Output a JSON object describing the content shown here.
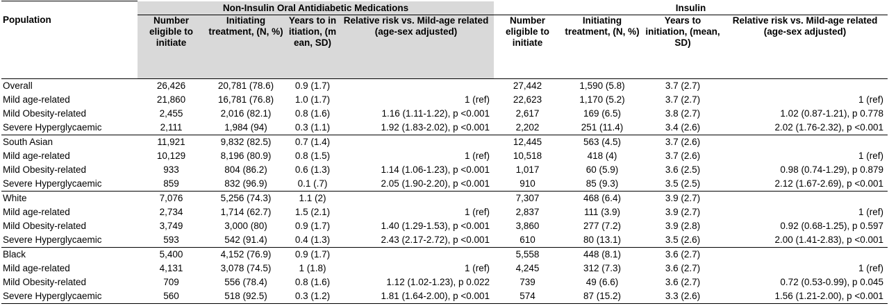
{
  "groups": {
    "oral": "Non-Insulin Oral Antidiabetic Medications",
    "insulin": "Insulin"
  },
  "headers": {
    "population": "Population",
    "oral_eligible": "Number eligible to initiate",
    "oral_initiating": "Initiating treatment, (N, %)",
    "oral_years": "Years to initiation, (mean, SD)",
    "oral_rr": "Relative risk vs. Mild-age related (age-sex adjusted)",
    "ins_eligible": "Number eligible to initiate",
    "ins_initiating": "Initiating treatment, (N, %)",
    "ins_years": "Years to initiation, (mean, SD)",
    "ins_rr": "Relative risk vs. Mild-age related (age-sex adjusted)"
  },
  "rows": [
    {
      "pop": "Overall",
      "o_n": "26,426",
      "o_init": "20,781 (78.6)",
      "o_yrs": "0.9 (1.7)",
      "o_rr": "",
      "i_n": "27,442",
      "i_init": "1,590 (5.8)",
      "i_yrs": "3.7 (2.7)",
      "i_rr": ""
    },
    {
      "pop": "Mild age-related",
      "o_n": "21,860",
      "o_init": "16,781 (76.8)",
      "o_yrs": "1.0 (1.7)",
      "o_rr": "1 (ref)",
      "i_n": "22,623",
      "i_init": "1,170 (5.2)",
      "i_yrs": "3.7 (2.7)",
      "i_rr": "1 (ref)"
    },
    {
      "pop": "Mild Obesity-related",
      "o_n": "2,455",
      "o_init": "2,016 (82.1)",
      "o_yrs": "0.8 (1.6)",
      "o_rr": "1.16  (1.11-1.22),  p <0.001",
      "i_n": "2,617",
      "i_init": "169 (6.5)",
      "i_yrs": "3.8 (2.7)",
      "i_rr": "1.02  (0.87-1.21),  p 0.778"
    },
    {
      "pop": "Severe Hyperglycaemic",
      "o_n": "2,111",
      "o_init": "1,984 (94)",
      "o_yrs": "0.3 (1.1)",
      "o_rr": "1.92  (1.83-2.02),  p <0.001",
      "i_n": "2,202",
      "i_init": "251 (11.4)",
      "i_yrs": "3.4 (2.6)",
      "i_rr": "2.02  (1.76-2.32),  p <0.001"
    },
    {
      "pop": "South Asian",
      "o_n": "11,921",
      "o_init": "9,832 (82.5)",
      "o_yrs": "0.7 (1.4)",
      "o_rr": "",
      "i_n": "12,445",
      "i_init": "563 (4.5)",
      "i_yrs": "3.7 (2.6)",
      "i_rr": ""
    },
    {
      "pop": "Mild age-related",
      "o_n": "10,129",
      "o_init": "8,196 (80.9)",
      "o_yrs": "0.8 (1.5)",
      "o_rr": "1 (ref)",
      "i_n": "10,518",
      "i_init": "418 (4)",
      "i_yrs": "3.7 (2.6)",
      "i_rr": "1 (ref)"
    },
    {
      "pop": "Mild Obesity-related",
      "o_n": "933",
      "o_init": "804 (86.2)",
      "o_yrs": "0.6 (1.3)",
      "o_rr": "1.14  (1.06-1.23),  p <0.001",
      "i_n": "1,017",
      "i_init": "60 (5.9)",
      "i_yrs": "3.6 (2.5)",
      "i_rr": "0.98  (0.74-1.29),  p 0.879"
    },
    {
      "pop": "Severe Hyperglycaemic",
      "o_n": "859",
      "o_init": "832 (96.9)",
      "o_yrs": "0.1 (.7)",
      "o_rr": "2.05  (1.90-2.20),  p <0.001",
      "i_n": "910",
      "i_init": "85 (9.3)",
      "i_yrs": "3.5 (2.5)",
      "i_rr": "2.12  (1.67-2.69),  p <0.001"
    },
    {
      "pop": "White",
      "o_n": "7,076",
      "o_init": "5,256 (74.3)",
      "o_yrs": "1.1 (2)",
      "o_rr": "",
      "i_n": "7,307",
      "i_init": "468 (6.4)",
      "i_yrs": "3.9 (2.7)",
      "i_rr": ""
    },
    {
      "pop": "Mild age-related",
      "o_n": "2,734",
      "o_init": "1,714 (62.7)",
      "o_yrs": "1.5 (2.1)",
      "o_rr": "1 (ref)",
      "i_n": "2,837",
      "i_init": "111 (3.9)",
      "i_yrs": "3.9 (2.7)",
      "i_rr": "1 (ref)"
    },
    {
      "pop": "Mild Obesity-related",
      "o_n": "3,749",
      "o_init": "3,000 (80)",
      "o_yrs": "0.9 (1.7)",
      "o_rr": "1.40  (1.29-1.53),  p <0.001",
      "i_n": "3,860",
      "i_init": "277 (7.2)",
      "i_yrs": "3.9 (2.8)",
      "i_rr": "0.92  (0.68-1.25),  p 0.597"
    },
    {
      "pop": "Severe Hyperglycaemic",
      "o_n": "593",
      "o_init": "542 (91.4)",
      "o_yrs": "0.4 (1.3)",
      "o_rr": "2.43  (2.17-2.72),  p <0.001",
      "i_n": "610",
      "i_init": "80 (13.1)",
      "i_yrs": "3.5 (2.6)",
      "i_rr": "2.00  (1.41-2.83),  p <0.001"
    },
    {
      "pop": "Black",
      "o_n": "5,400",
      "o_init": "4,152 (76.9)",
      "o_yrs": "0.9 (1.7)",
      "o_rr": "",
      "i_n": "5,558",
      "i_init": "448 (8.1)",
      "i_yrs": "3.6 (2.7)",
      "i_rr": ""
    },
    {
      "pop": "Mild age-related",
      "o_n": "4,131",
      "o_init": "3,078 (74.5)",
      "o_yrs": "1 (1.8)",
      "o_rr": "1 (ref)",
      "i_n": "4,245",
      "i_init": "312 (7.3)",
      "i_yrs": "3.6 (2.7)",
      "i_rr": "1 (ref)"
    },
    {
      "pop": "Mild Obesity-related",
      "o_n": "709",
      "o_init": "556 (78.4)",
      "o_yrs": "0.8 (1.6)",
      "o_rr": "1.12  (1.02-1.23),  p 0.022",
      "i_n": "739",
      "i_init": "49 (6.6)",
      "i_yrs": "3.6 (2.7)",
      "i_rr": "0.72  (0.53-0.99),  p 0.045"
    },
    {
      "pop": "Severe Hyperglycaemic",
      "o_n": "560",
      "o_init": "518 (92.5)",
      "o_yrs": "0.3 (1.2)",
      "o_rr": "1.81  (1.64-2.00),  p <0.001",
      "i_n": "574",
      "i_init": "87 (15.2)",
      "i_yrs": "3.3 (2.6)",
      "i_rr": "1.56  (1.21-2.00),  p <0.001"
    }
  ],
  "colors": {
    "header_shade": "#d9d9d9"
  }
}
